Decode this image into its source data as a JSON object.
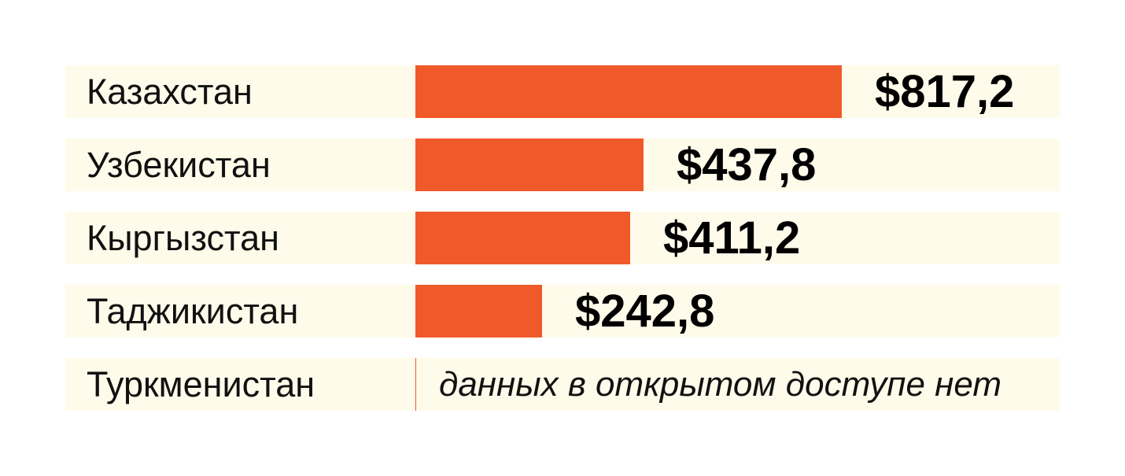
{
  "colors": {
    "bar": "#f05a2b",
    "row_background": "#fffbea",
    "text": "#111111"
  },
  "chart_data": {
    "type": "bar",
    "orientation": "horizontal",
    "title": "",
    "xlabel": "",
    "ylabel": "",
    "xlim": [
      0,
      1000
    ],
    "categories": [
      "Казахстан",
      "Узбекистан",
      "Кыргызстан",
      "Таджикистан",
      "Туркменистан"
    ],
    "values": [
      817.2,
      437.8,
      411.2,
      242.8,
      null
    ],
    "value_labels": [
      "$817,2",
      "$437,8",
      "$411,2",
      "$242,8",
      null
    ],
    "missing_note": "данных в открытом доступе нет",
    "grid": false,
    "legend": "none"
  }
}
